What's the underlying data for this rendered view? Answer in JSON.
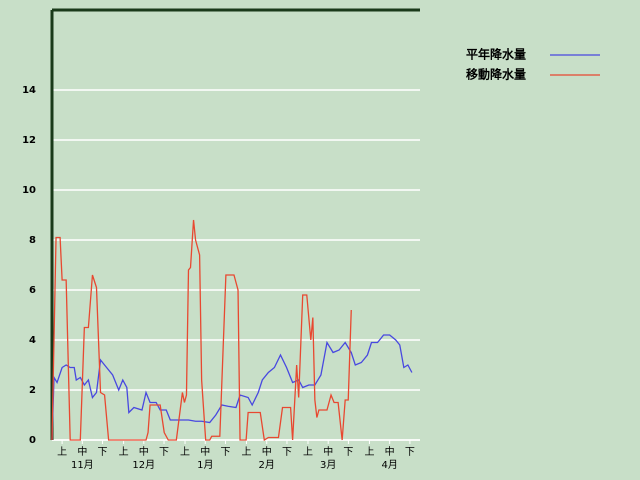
{
  "chart_data": {
    "type": "line",
    "xlim": [
      0,
      182
    ],
    "ylim": [
      0,
      17.2
    ],
    "yticks": [
      0,
      2,
      4,
      6,
      8,
      10,
      12,
      14
    ],
    "xticks": [
      {
        "value": 5,
        "label": "上"
      },
      {
        "value": 15,
        "label": "中"
      },
      {
        "value": 25,
        "label": "下"
      },
      {
        "value": 35.4,
        "label": "上"
      },
      {
        "value": 45.4,
        "label": "中"
      },
      {
        "value": 55.4,
        "label": "下"
      },
      {
        "value": 65.8,
        "label": "上"
      },
      {
        "value": 75.8,
        "label": "中"
      },
      {
        "value": 85.8,
        "label": "下"
      },
      {
        "value": 96.2,
        "label": "上"
      },
      {
        "value": 106.2,
        "label": "中"
      },
      {
        "value": 116.2,
        "label": "下"
      },
      {
        "value": 126.6,
        "label": "上"
      },
      {
        "value": 136.6,
        "label": "中"
      },
      {
        "value": 146.6,
        "label": "下"
      },
      {
        "value": 157,
        "label": "上"
      },
      {
        "value": 167,
        "label": "中"
      },
      {
        "value": 177,
        "label": "下"
      }
    ],
    "month_ticks": [
      {
        "value": 15,
        "label": "11月"
      },
      {
        "value": 45.4,
        "label": "12月"
      },
      {
        "value": 75.8,
        "label": "1月"
      },
      {
        "value": 106.2,
        "label": "2月"
      },
      {
        "value": 136.6,
        "label": "3月"
      },
      {
        "value": 167,
        "label": "4月"
      }
    ],
    "grid": true,
    "series": [
      {
        "name": "平年降水量",
        "color": "#4848e0",
        "x": [
          0,
          1,
          2.5,
          5,
          7,
          9,
          11,
          12,
          14,
          16,
          18,
          20,
          22,
          24,
          27,
          30,
          33,
          35,
          37,
          38,
          40.5,
          44.5,
          46.5,
          48.5,
          51.5,
          53.5,
          56.5,
          58.5,
          61.5,
          64.5,
          67.5,
          71,
          74,
          78,
          81,
          84,
          87,
          91,
          93,
          97,
          99,
          102,
          104,
          107,
          110,
          113,
          116,
          119,
          122,
          124,
          127,
          130,
          133,
          136,
          139,
          142,
          145,
          148,
          150,
          153,
          156,
          158,
          161,
          164,
          167,
          170,
          172,
          174,
          176,
          178
        ],
        "values": [
          0,
          2.5,
          2.3,
          2.9,
          3.0,
          2.9,
          2.9,
          2.4,
          2.5,
          2.2,
          2.4,
          1.7,
          1.9,
          3.2,
          2.9,
          2.6,
          2.0,
          2.4,
          2.1,
          1.1,
          1.3,
          1.2,
          1.9,
          1.5,
          1.5,
          1.2,
          1.2,
          0.8,
          0.8,
          0.8,
          0.8,
          0.75,
          0.75,
          0.7,
          1.0,
          1.4,
          1.35,
          1.3,
          1.8,
          1.7,
          1.4,
          1.9,
          2.4,
          2.7,
          2.9,
          3.4,
          2.9,
          2.3,
          2.4,
          2.1,
          2.2,
          2.2,
          2.6,
          3.9,
          3.5,
          3.6,
          3.9,
          3.5,
          3.0,
          3.1,
          3.4,
          3.9,
          3.9,
          4.2,
          4.2,
          4.0,
          3.8,
          2.9,
          3.0,
          2.7
        ]
      },
      {
        "name": "移動降水量",
        "color": "#e84830",
        "x": [
          0,
          2,
          4,
          5,
          7,
          9,
          14,
          16,
          18,
          20,
          22,
          24,
          26,
          28,
          39.5,
          46.5,
          47.5,
          48.5,
          53.5,
          55.5,
          57.5,
          61.5,
          64.5,
          65.5,
          66.5,
          67.5,
          68.5,
          70,
          71,
          73,
          74,
          76,
          78,
          79,
          83,
          86,
          90,
          92,
          93,
          96,
          97,
          103,
          105,
          107,
          112,
          114,
          118,
          119,
          121,
          122,
          124,
          126,
          128,
          129,
          130,
          131,
          132,
          136,
          138,
          139.5,
          141.5,
          143.5,
          145,
          146.5,
          148
        ],
        "values": [
          0,
          8.1,
          8.1,
          6.4,
          6.4,
          0,
          0,
          4.5,
          4.5,
          6.6,
          6.1,
          1.9,
          1.8,
          0,
          0,
          0,
          0.3,
          1.4,
          1.4,
          0.3,
          0,
          0,
          1.9,
          1.5,
          1.8,
          6.8,
          6.9,
          8.8,
          8.0,
          7.4,
          2.4,
          0,
          0,
          0.15,
          0.15,
          6.6,
          6.6,
          6.0,
          0,
          0,
          1.1,
          1.1,
          0,
          0.1,
          0.1,
          1.3,
          1.3,
          0,
          3.0,
          1.7,
          5.8,
          5.8,
          4.0,
          4.9,
          1.6,
          0.9,
          1.2,
          1.2,
          1.8,
          1.5,
          1.5,
          0,
          1.6,
          1.6,
          5.2
        ]
      }
    ]
  }
}
